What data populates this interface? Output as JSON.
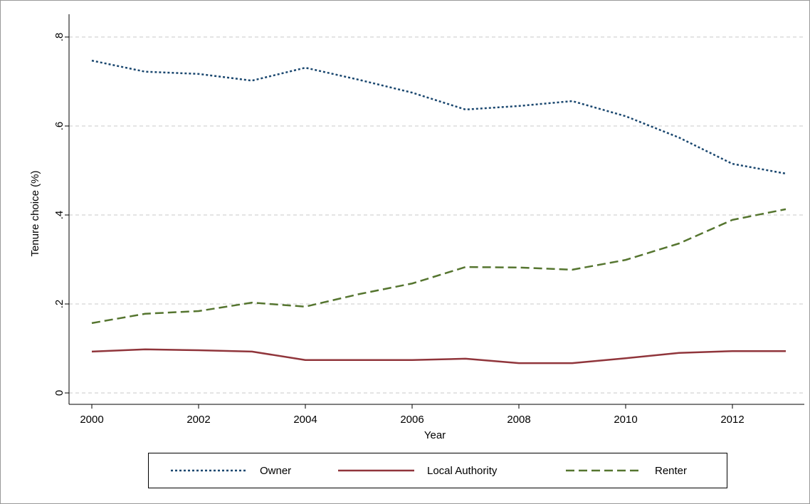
{
  "chart_data": {
    "type": "line",
    "x_label": "Year",
    "y_label": "Tenure choice (%)",
    "x": [
      2000,
      2001,
      2002,
      2003,
      2004,
      2005,
      2006,
      2007,
      2008,
      2009,
      2010,
      2011,
      2012,
      2013
    ],
    "series": [
      {
        "name": "Owner",
        "color": "#1a476f",
        "dash": "dot",
        "values": [
          0.747,
          0.722,
          0.717,
          0.702,
          0.731,
          0.704,
          0.675,
          0.637,
          0.645,
          0.656,
          0.622,
          0.574,
          0.515,
          0.493
        ]
      },
      {
        "name": "Local Authority",
        "color": "#90353b",
        "dash": "solid",
        "values": [
          0.093,
          0.098,
          0.096,
          0.093,
          0.074,
          0.074,
          0.074,
          0.077,
          0.067,
          0.067,
          0.078,
          0.09,
          0.094,
          0.094
        ]
      },
      {
        "name": "Renter",
        "color": "#55752f",
        "dash": "dash",
        "values": [
          0.157,
          0.178,
          0.184,
          0.203,
          0.194,
          0.222,
          0.246,
          0.283,
          0.282,
          0.277,
          0.299,
          0.336,
          0.389,
          0.413
        ]
      }
    ],
    "xlim": [
      2000,
      2013
    ],
    "xticks": [
      2000,
      2002,
      2004,
      2006,
      2008,
      2010,
      2012
    ],
    "ylim": [
      0,
      0.8
    ],
    "yticks": [
      0,
      {
        "value": 0.2,
        "label": ".2"
      },
      {
        "value": 0.4,
        "label": ".4"
      },
      {
        "value": 0.6,
        "label": ".6"
      },
      {
        "value": 0.8,
        "label": ".8"
      }
    ],
    "grid": true,
    "legend": "bottom"
  }
}
